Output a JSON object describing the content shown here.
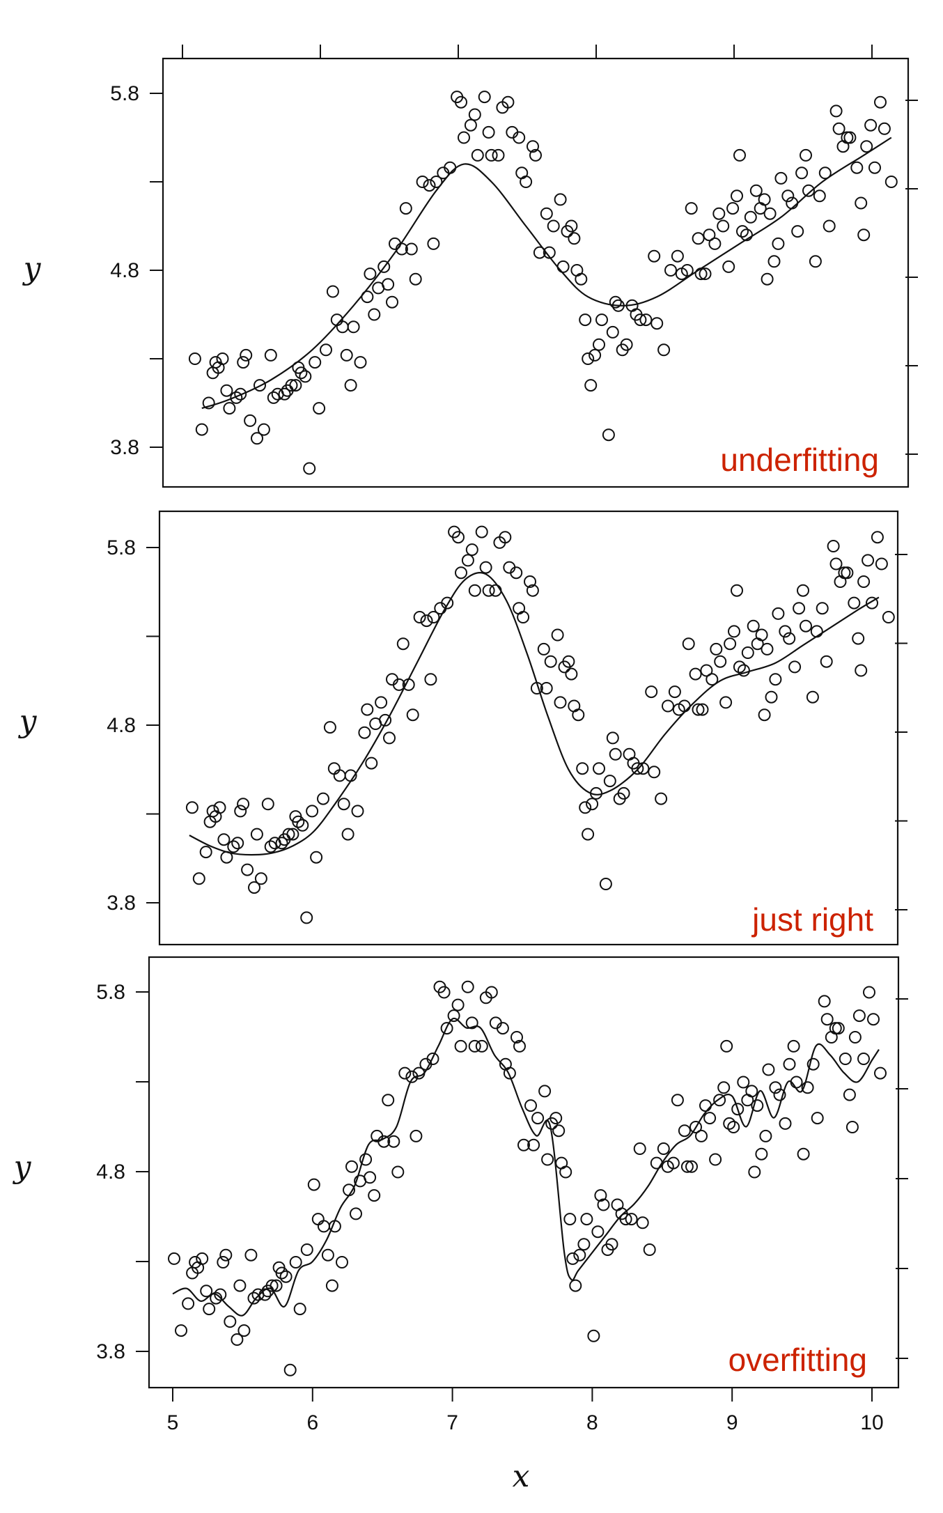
{
  "chart_data": [
    {
      "type": "scatter",
      "annotation": "underfitting",
      "annotation_color": "#cc2200",
      "ylabel": "y",
      "yticks": [
        "5.8",
        "4.8",
        "3.8"
      ],
      "xlim": [
        5,
        10
      ],
      "ylim": [
        3.8,
        5.8
      ],
      "curve_x": [
        5.1,
        5.3,
        5.6,
        5.9,
        6.2,
        6.5,
        6.8,
        7.0,
        7.2,
        7.45,
        7.7,
        7.9,
        8.15,
        8.4,
        8.7,
        9.0,
        9.3,
        9.6,
        9.9,
        10.1
      ],
      "curve_y": [
        4.02,
        4.07,
        4.18,
        4.35,
        4.6,
        4.9,
        5.25,
        5.4,
        5.3,
        5.05,
        4.8,
        4.65,
        4.6,
        4.65,
        4.8,
        4.95,
        5.1,
        5.3,
        5.45,
        5.55
      ],
      "points": [
        [
          5.05,
          4.3
        ],
        [
          5.1,
          3.9
        ],
        [
          5.15,
          4.05
        ],
        [
          5.18,
          4.22
        ],
        [
          5.2,
          4.28
        ],
        [
          5.22,
          4.25
        ],
        [
          5.25,
          4.3
        ],
        [
          5.28,
          4.12
        ],
        [
          5.3,
          4.02
        ],
        [
          5.35,
          4.08
        ],
        [
          5.38,
          4.1
        ],
        [
          5.4,
          4.28
        ],
        [
          5.42,
          4.32
        ],
        [
          5.45,
          3.95
        ],
        [
          5.5,
          3.85
        ],
        [
          5.52,
          4.15
        ],
        [
          5.55,
          3.9
        ],
        [
          5.6,
          4.32
        ],
        [
          5.62,
          4.08
        ],
        [
          5.65,
          4.1
        ],
        [
          5.7,
          4.1
        ],
        [
          5.72,
          4.12
        ],
        [
          5.75,
          4.15
        ],
        [
          5.78,
          4.15
        ],
        [
          5.8,
          4.25
        ],
        [
          5.82,
          4.22
        ],
        [
          5.85,
          4.2
        ],
        [
          5.88,
          3.68
        ],
        [
          5.92,
          4.28
        ],
        [
          5.95,
          4.02
        ],
        [
          6.0,
          4.35
        ],
        [
          6.05,
          4.68
        ],
        [
          6.08,
          4.52
        ],
        [
          6.12,
          4.48
        ],
        [
          6.15,
          4.32
        ],
        [
          6.18,
          4.15
        ],
        [
          6.2,
          4.48
        ],
        [
          6.25,
          4.28
        ],
        [
          6.3,
          4.65
        ],
        [
          6.32,
          4.78
        ],
        [
          6.35,
          4.55
        ],
        [
          6.38,
          4.7
        ],
        [
          6.42,
          4.82
        ],
        [
          6.45,
          4.72
        ],
        [
          6.48,
          4.62
        ],
        [
          6.5,
          4.95
        ],
        [
          6.55,
          4.92
        ],
        [
          6.58,
          5.15
        ],
        [
          6.62,
          4.92
        ],
        [
          6.65,
          4.75
        ],
        [
          6.7,
          5.3
        ],
        [
          6.75,
          5.28
        ],
        [
          6.78,
          4.95
        ],
        [
          6.8,
          5.3
        ],
        [
          6.85,
          5.35
        ],
        [
          6.9,
          5.38
        ],
        [
          6.95,
          5.78
        ],
        [
          6.98,
          5.75
        ],
        [
          7.0,
          5.55
        ],
        [
          7.05,
          5.62
        ],
        [
          7.08,
          5.68
        ],
        [
          7.1,
          5.45
        ],
        [
          7.15,
          5.78
        ],
        [
          7.18,
          5.58
        ],
        [
          7.2,
          5.45
        ],
        [
          7.25,
          5.45
        ],
        [
          7.28,
          5.72
        ],
        [
          7.32,
          5.75
        ],
        [
          7.35,
          5.58
        ],
        [
          7.4,
          5.55
        ],
        [
          7.42,
          5.35
        ],
        [
          7.45,
          5.3
        ],
        [
          7.5,
          5.5
        ],
        [
          7.52,
          5.45
        ],
        [
          7.55,
          4.9
        ],
        [
          7.6,
          5.12
        ],
        [
          7.62,
          4.9
        ],
        [
          7.65,
          5.05
        ],
        [
          7.7,
          5.2
        ],
        [
          7.72,
          4.82
        ],
        [
          7.75,
          5.02
        ],
        [
          7.78,
          5.05
        ],
        [
          7.8,
          4.98
        ],
        [
          7.82,
          4.8
        ],
        [
          7.85,
          4.75
        ],
        [
          7.88,
          4.52
        ],
        [
          7.9,
          4.3
        ],
        [
          7.92,
          4.15
        ],
        [
          7.95,
          4.32
        ],
        [
          7.98,
          4.38
        ],
        [
          8.0,
          4.52
        ],
        [
          8.05,
          3.87
        ],
        [
          8.08,
          4.45
        ],
        [
          8.1,
          4.62
        ],
        [
          8.12,
          4.6
        ],
        [
          8.15,
          4.35
        ],
        [
          8.18,
          4.38
        ],
        [
          8.22,
          4.6
        ],
        [
          8.25,
          4.55
        ],
        [
          8.28,
          4.52
        ],
        [
          8.32,
          4.52
        ],
        [
          8.38,
          4.88
        ],
        [
          8.4,
          4.5
        ],
        [
          8.45,
          4.35
        ],
        [
          8.5,
          4.8
        ],
        [
          8.55,
          4.88
        ],
        [
          8.58,
          4.78
        ],
        [
          8.62,
          4.8
        ],
        [
          8.65,
          5.15
        ],
        [
          8.7,
          4.98
        ],
        [
          8.72,
          4.78
        ],
        [
          8.75,
          4.78
        ],
        [
          8.78,
          5.0
        ],
        [
          8.82,
          4.95
        ],
        [
          8.85,
          5.12
        ],
        [
          8.88,
          5.05
        ],
        [
          8.92,
          4.82
        ],
        [
          8.95,
          5.15
        ],
        [
          8.98,
          5.22
        ],
        [
          9.0,
          5.45
        ],
        [
          9.02,
          5.02
        ],
        [
          9.05,
          5.0
        ],
        [
          9.08,
          5.1
        ],
        [
          9.12,
          5.25
        ],
        [
          9.15,
          5.15
        ],
        [
          9.18,
          5.2
        ],
        [
          9.2,
          4.75
        ],
        [
          9.22,
          5.12
        ],
        [
          9.25,
          4.85
        ],
        [
          9.28,
          4.95
        ],
        [
          9.3,
          5.32
        ],
        [
          9.35,
          5.22
        ],
        [
          9.38,
          5.18
        ],
        [
          9.42,
          5.02
        ],
        [
          9.45,
          5.35
        ],
        [
          9.48,
          5.45
        ],
        [
          9.5,
          5.25
        ],
        [
          9.55,
          4.85
        ],
        [
          9.58,
          5.22
        ],
        [
          9.62,
          5.35
        ],
        [
          9.65,
          5.05
        ],
        [
          9.7,
          5.7
        ],
        [
          9.72,
          5.6
        ],
        [
          9.75,
          5.5
        ],
        [
          9.78,
          5.55
        ],
        [
          9.8,
          5.55
        ],
        [
          9.85,
          5.38
        ],
        [
          9.88,
          5.18
        ],
        [
          9.9,
          5.0
        ],
        [
          9.92,
          5.5
        ],
        [
          9.95,
          5.62
        ],
        [
          9.98,
          5.38
        ],
        [
          10.02,
          5.75
        ],
        [
          10.05,
          5.6
        ],
        [
          10.1,
          5.3
        ]
      ]
    },
    {
      "type": "scatter",
      "annotation": "just right",
      "annotation_color": "#cc2200",
      "ylabel": "y",
      "yticks": [
        "5.8",
        "4.8",
        "3.8"
      ],
      "xlim": [
        5,
        10
      ],
      "ylim": [
        3.8,
        5.8
      ],
      "curve_x": [
        5.05,
        5.2,
        5.35,
        5.5,
        5.65,
        5.8,
        5.95,
        6.1,
        6.3,
        6.5,
        6.7,
        6.9,
        7.05,
        7.2,
        7.35,
        7.5,
        7.65,
        7.8,
        7.95,
        8.1,
        8.3,
        8.5,
        8.7,
        8.9,
        9.1,
        9.3,
        9.5,
        9.7,
        9.9,
        10.05
      ],
      "curve_y": [
        4.18,
        4.12,
        4.08,
        4.07,
        4.08,
        4.12,
        4.2,
        4.35,
        4.58,
        4.85,
        5.15,
        5.45,
        5.62,
        5.65,
        5.5,
        5.2,
        4.85,
        4.55,
        4.42,
        4.43,
        4.55,
        4.75,
        4.92,
        5.05,
        5.1,
        5.15,
        5.25,
        5.35,
        5.45,
        5.52
      ]
    },
    {
      "type": "scatter",
      "annotation": "overfitting",
      "annotation_color": "#cc2200",
      "ylabel": "y",
      "yticks": [
        "5.8",
        "4.8",
        "3.8"
      ],
      "xlim": [
        5,
        10
      ],
      "ylim": [
        3.8,
        5.8
      ],
      "curve_x": [
        5.0,
        5.1,
        5.2,
        5.3,
        5.4,
        5.5,
        5.6,
        5.7,
        5.8,
        5.9,
        6.0,
        6.1,
        6.2,
        6.3,
        6.4,
        6.5,
        6.6,
        6.7,
        6.8,
        6.9,
        7.0,
        7.1,
        7.2,
        7.3,
        7.4,
        7.5,
        7.6,
        7.7,
        7.8,
        7.85,
        7.9,
        8.0,
        8.1,
        8.2,
        8.3,
        8.4,
        8.5,
        8.6,
        8.7,
        8.8,
        8.9,
        9.0,
        9.1,
        9.2,
        9.3,
        9.4,
        9.5,
        9.6,
        9.7,
        9.8,
        9.9,
        10.0,
        10.05
      ],
      "curve_y": [
        4.12,
        4.15,
        4.08,
        4.12,
        4.05,
        4.0,
        4.1,
        4.15,
        4.05,
        4.25,
        4.3,
        4.42,
        4.6,
        4.72,
        4.95,
        4.98,
        5.05,
        5.3,
        5.35,
        5.5,
        5.65,
        5.6,
        5.6,
        5.45,
        5.35,
        5.15,
        5.0,
        5.05,
        4.35,
        4.2,
        4.25,
        4.35,
        4.45,
        4.55,
        4.62,
        4.72,
        4.85,
        4.95,
        5.0,
        5.12,
        5.2,
        5.22,
        5.05,
        5.25,
        5.1,
        5.3,
        5.25,
        5.5,
        5.45,
        5.35,
        5.3,
        5.42,
        5.48
      ]
    }
  ],
  "xaxis": {
    "label": "x",
    "ticks": [
      "5",
      "6",
      "7",
      "8",
      "9",
      "10"
    ]
  }
}
